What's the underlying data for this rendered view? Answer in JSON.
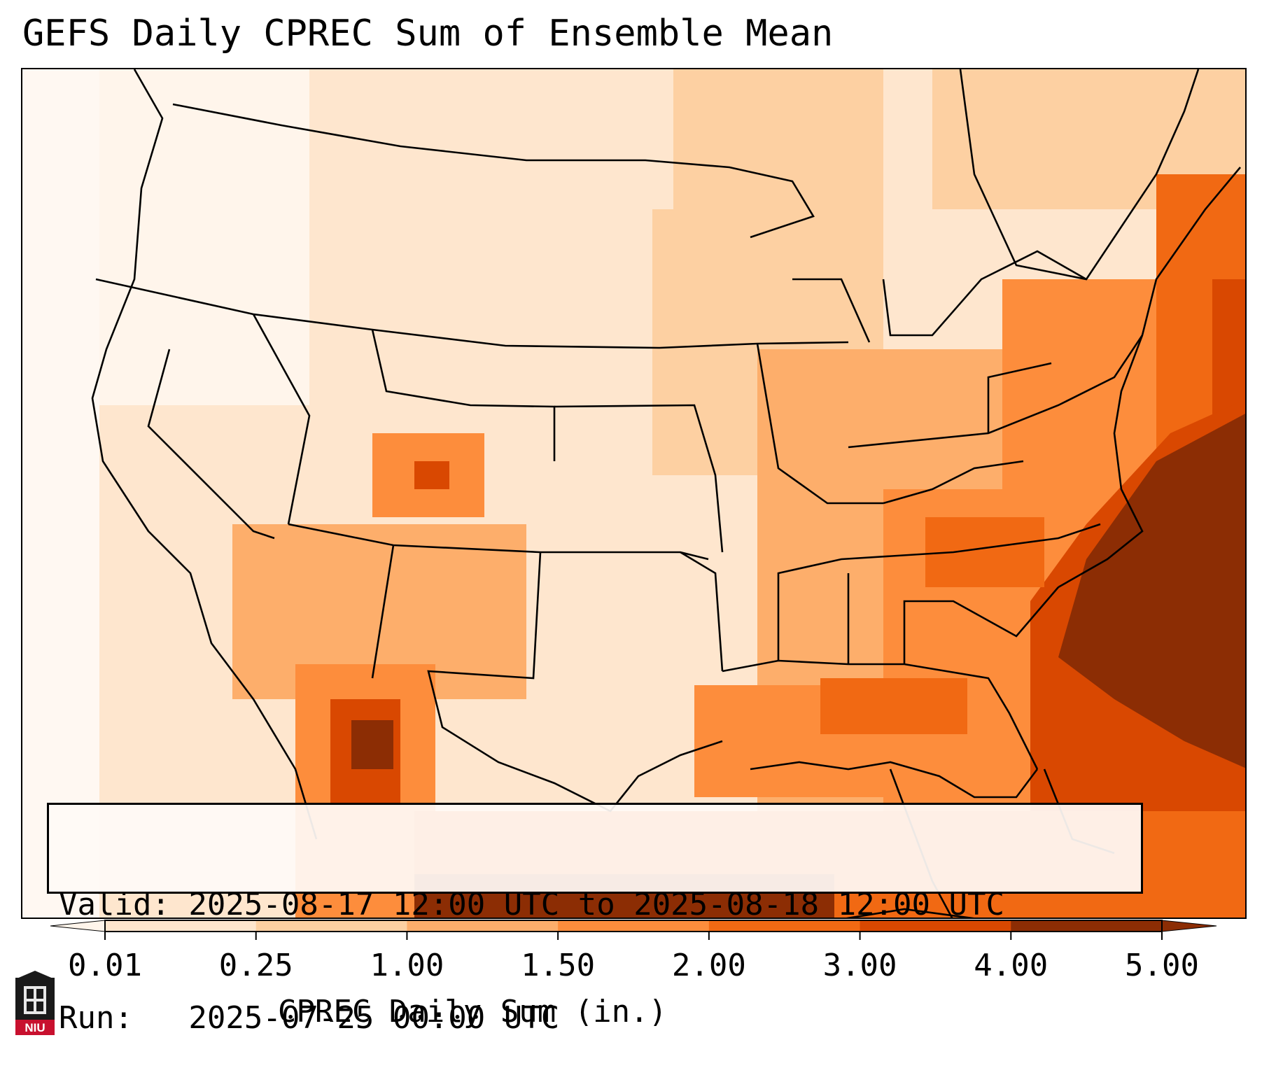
{
  "title": "GEFS Daily CPREC Sum of Ensemble Mean",
  "info": {
    "valid_line": "Valid: 2025-08-17 12:00 UTC to 2025-08-18 12:00 UTC",
    "run_line": "Run:   2025-07-25 00:00 UTC"
  },
  "colorbar": {
    "label": "CPREC Daily Sum (in.)",
    "ticks": [
      "0.01",
      "0.25",
      "1.00",
      "1.50",
      "2.00",
      "3.00",
      "4.00",
      "5.00"
    ],
    "colors": [
      "#fff5eb",
      "#fee6ce",
      "#fdd0a2",
      "#fdae6b",
      "#fd8d3c",
      "#f16913",
      "#d94801",
      "#8c2d04"
    ]
  },
  "logo": {
    "text": "NIU",
    "colors": {
      "red": "#c8102e",
      "black": "#1a1a1a"
    }
  },
  "icons": [
    "niu-logo-icon",
    "colorbar-extend-triangle-icon"
  ]
}
